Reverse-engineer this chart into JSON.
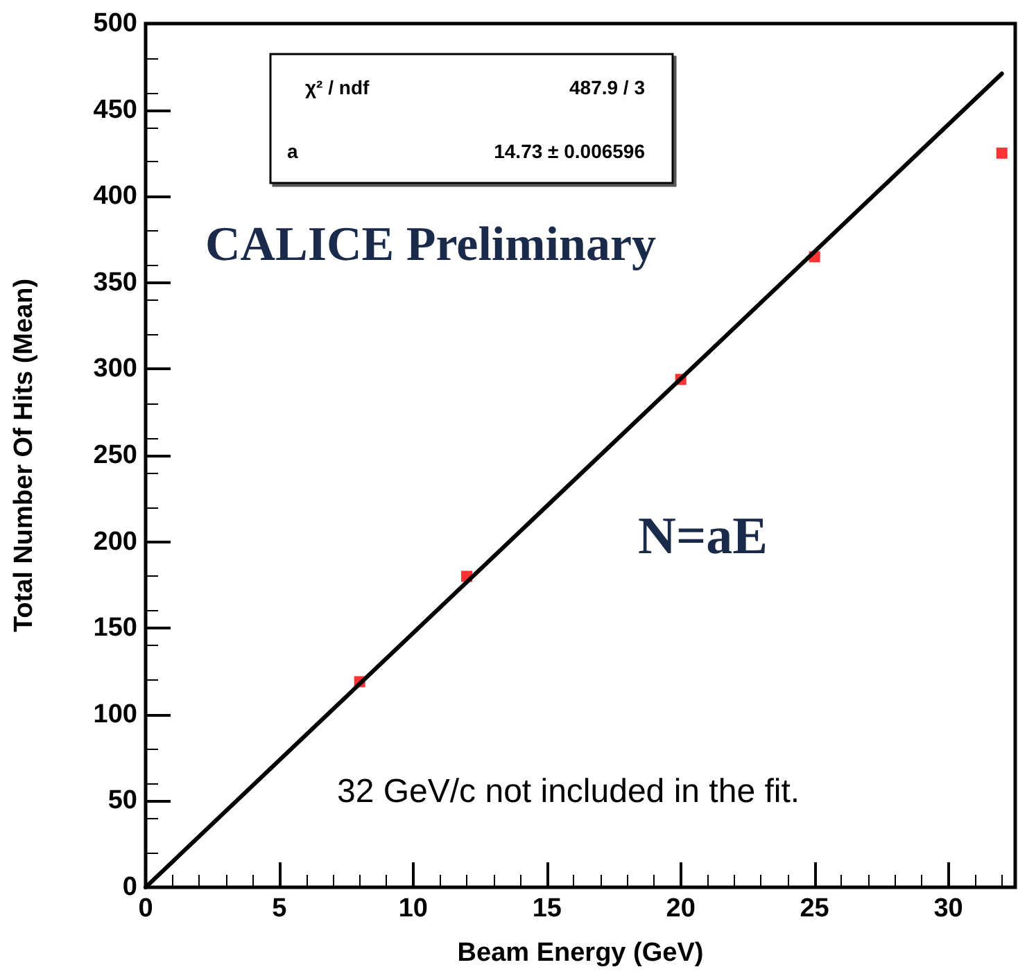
{
  "chart_data": {
    "type": "scatter",
    "xlabel": "Beam Energy (GeV)",
    "ylabel": "Total Number Of Hits (Mean)",
    "xlim": [
      0,
      32.5
    ],
    "xticks": [
      0,
      5,
      10,
      15,
      20,
      25,
      30
    ],
    "ylim": [
      0,
      500
    ],
    "yticks": [
      0,
      50,
      100,
      150,
      200,
      250,
      300,
      350,
      400,
      450,
      500
    ],
    "grid": false,
    "marker": "square",
    "series": [
      {
        "color": "#ff0000",
        "x": [
          8,
          12,
          20,
          25,
          32
        ],
        "values": [
          119,
          180,
          294,
          365,
          425
        ]
      },
      {
        "type": "line",
        "color": "#000000",
        "marker": "none",
        "line_style": "solid",
        "x": [
          0,
          32
        ],
        "values": [
          0,
          471
        ]
      }
    ],
    "annotations": [
      "χ² / ndf",
      "487.9 / 3",
      "a",
      "14.73 ± 0.006596",
      "CALICE Preliminary",
      "N=aE",
      "32 GeV/c not included in the fit."
    ]
  }
}
